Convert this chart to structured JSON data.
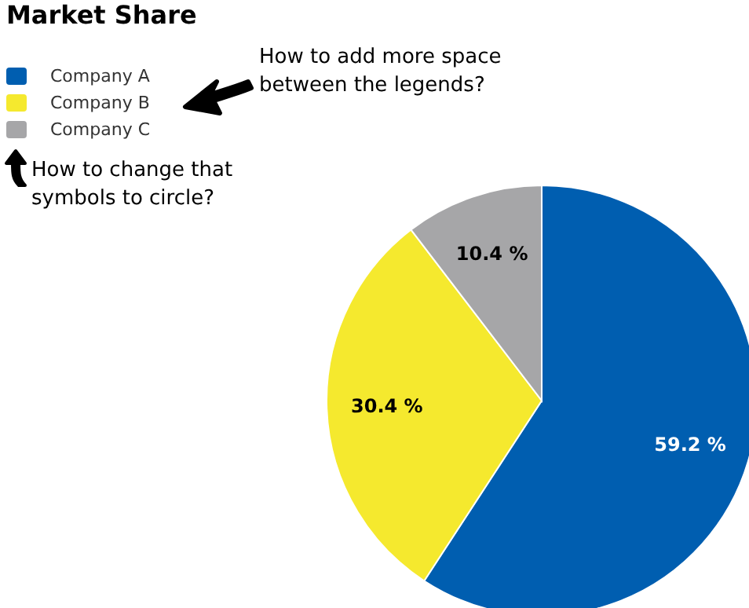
{
  "chart_data": {
    "type": "pie",
    "title": "Market Share",
    "categories": [
      "Company A",
      "Company B",
      "Company C"
    ],
    "values": [
      59.2,
      30.4,
      10.4
    ],
    "value_labels": [
      "59.2 %",
      "30.4 %",
      "10.4 %"
    ],
    "colors": [
      "#005eb0",
      "#f5e92e",
      "#a6a6a8"
    ],
    "legend": "top left",
    "annotations": [
      "How to add more space between the legends?",
      "How to change that symbols to circle?"
    ]
  }
}
